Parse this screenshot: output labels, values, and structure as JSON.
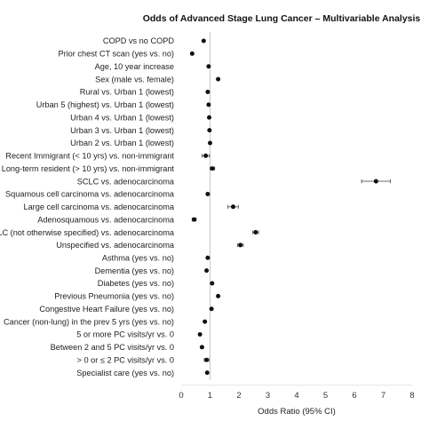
{
  "chart_data": {
    "type": "scatter",
    "title": "Odds of Advanced Stage Lung Cancer – Multivariable Analysis",
    "xlabel": "Odds Ratio (95% CI)",
    "ylabel": "",
    "xlim": [
      0,
      8
    ],
    "xticks": [
      "0",
      "1",
      "2",
      "3",
      "4",
      "5",
      "6",
      "7",
      "8"
    ],
    "reference_line": 1,
    "grid": false,
    "point_color": "#111111",
    "ref_line_color": "#c8c8c8",
    "points": [
      {
        "label": "COPD vs no COPD",
        "or": 0.78,
        "lo": 0.74,
        "hi": 0.82
      },
      {
        "label": "Prior chest CT scan (yes vs. no)",
        "or": 0.38,
        "lo": 0.34,
        "hi": 0.42
      },
      {
        "label": "Age, 10 year increase",
        "or": 0.95,
        "lo": 0.93,
        "hi": 0.97
      },
      {
        "label": "Sex (male vs. female)",
        "or": 1.28,
        "lo": 1.24,
        "hi": 1.32
      },
      {
        "label": "Rural vs. Urban 1 (lowest)",
        "or": 0.92,
        "lo": 0.86,
        "hi": 0.98
      },
      {
        "label": "Urban 5 (highest) vs. Urban 1 (lowest)",
        "or": 0.95,
        "lo": 0.9,
        "hi": 1.0
      },
      {
        "label": "Urban 4 vs. Urban 1 (lowest)",
        "or": 0.97,
        "lo": 0.92,
        "hi": 1.02
      },
      {
        "label": "Urban 3 vs. Urban 1 (lowest)",
        "or": 0.98,
        "lo": 0.93,
        "hi": 1.03
      },
      {
        "label": "Urban 2 vs. Urban 1 (lowest)",
        "or": 1.0,
        "lo": 0.95,
        "hi": 1.05
      },
      {
        "label": "Recent Immigrant (< 10 yrs) vs. non-immigrant",
        "or": 0.85,
        "lo": 0.72,
        "hi": 0.98
      },
      {
        "label": "Long-term resident (> 10 yrs) vs. non-immigrant",
        "or": 1.08,
        "lo": 1.0,
        "hi": 1.16
      },
      {
        "label": "SCLC vs. adenocarcinoma",
        "or": 6.75,
        "lo": 6.25,
        "hi": 7.25
      },
      {
        "label": "Squamous cell carcinoma vs. adenocarcinoma",
        "or": 0.92,
        "lo": 0.88,
        "hi": 0.96
      },
      {
        "label": "Large cell carcinoma vs. adenocarcinoma",
        "or": 1.8,
        "lo": 1.62,
        "hi": 1.98
      },
      {
        "label": "Adenosquamous vs. adenocarcinoma",
        "or": 0.45,
        "lo": 0.38,
        "hi": 0.52
      },
      {
        "label": "LC (not otherwise specified) vs. adenocarcinoma",
        "or": 2.58,
        "lo": 2.48,
        "hi": 2.68
      },
      {
        "label": "Unspecified vs. adenocarcinoma",
        "or": 2.05,
        "lo": 1.95,
        "hi": 2.15
      },
      {
        "label": "Asthma (yes vs. no)",
        "or": 0.92,
        "lo": 0.87,
        "hi": 0.97
      },
      {
        "label": "Dementia (yes vs. no)",
        "or": 0.88,
        "lo": 0.82,
        "hi": 0.94
      },
      {
        "label": "Diabetes (yes vs. no)",
        "or": 1.07,
        "lo": 1.03,
        "hi": 1.11
      },
      {
        "label": "Previous Pneumonia (yes vs. no)",
        "or": 1.28,
        "lo": 1.23,
        "hi": 1.33
      },
      {
        "label": "Congestive Heart Failure (yes vs. no)",
        "or": 1.05,
        "lo": 1.0,
        "hi": 1.1
      },
      {
        "label": "Cancer (non-lung) in the prev 5 yrs (yes vs. no)",
        "or": 0.82,
        "lo": 0.78,
        "hi": 0.86
      },
      {
        "label": "5 or more PC visits/yr vs. 0",
        "or": 0.65,
        "lo": 0.6,
        "hi": 0.7
      },
      {
        "label": "Between 2 and 5 PC visits/yr vs. 0",
        "or": 0.72,
        "lo": 0.67,
        "hi": 0.77
      },
      {
        "label": "> 0 or ≤ 2 PC visits/yr vs. 0",
        "or": 0.88,
        "lo": 0.8,
        "hi": 0.96
      },
      {
        "label": "Specialist care (yes vs. no)",
        "or": 0.9,
        "lo": 0.86,
        "hi": 0.94
      }
    ]
  }
}
